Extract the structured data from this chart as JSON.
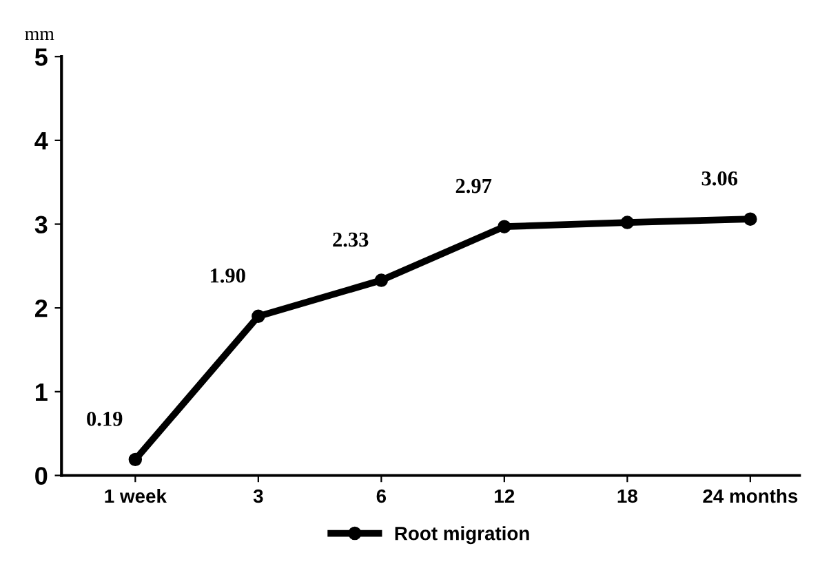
{
  "chart_data": {
    "type": "line",
    "ylabel": "mm",
    "categories": [
      "1 week",
      "3",
      "6",
      "12",
      "18",
      "24 months"
    ],
    "series": [
      {
        "name": "Root migration",
        "color": "#000000",
        "values": [
          0.19,
          1.9,
          2.33,
          2.97,
          3.02,
          3.06
        ],
        "value_labels": [
          "0.19",
          "1.90",
          "2.33",
          "2.97",
          null,
          "3.06"
        ]
      }
    ],
    "ylim": [
      0,
      5
    ],
    "yticks": [
      0,
      1,
      2,
      3,
      4,
      5
    ],
    "grid": false,
    "legend": "bottom",
    "marker": "circle",
    "line_style": "solid"
  }
}
